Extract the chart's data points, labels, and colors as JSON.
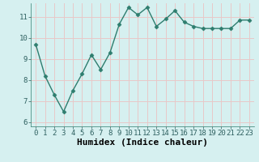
{
  "x": [
    0,
    1,
    2,
    3,
    4,
    5,
    6,
    7,
    8,
    9,
    10,
    11,
    12,
    13,
    14,
    15,
    16,
    17,
    18,
    19,
    20,
    21,
    22,
    23
  ],
  "y": [
    9.7,
    8.2,
    7.3,
    6.5,
    7.5,
    8.3,
    9.2,
    8.5,
    9.3,
    10.65,
    11.45,
    11.1,
    11.45,
    10.55,
    10.9,
    11.3,
    10.75,
    10.55,
    10.45,
    10.45,
    10.45,
    10.45,
    10.85,
    10.85
  ],
  "line_color": "#2e7d6e",
  "marker": "D",
  "marker_size": 2.5,
  "bg_color": "#d6f0f0",
  "grid_color": "#e8c8c8",
  "xlabel": "Humidex (Indice chaleur)",
  "ylabel": "",
  "xlim": [
    -0.5,
    23.5
  ],
  "ylim": [
    5.8,
    11.65
  ],
  "yticks": [
    6,
    7,
    8,
    9,
    10,
    11
  ],
  "xticks": [
    0,
    1,
    2,
    3,
    4,
    5,
    6,
    7,
    8,
    9,
    10,
    11,
    12,
    13,
    14,
    15,
    16,
    17,
    18,
    19,
    20,
    21,
    22,
    23
  ],
  "tick_fontsize": 6.5,
  "xlabel_fontsize": 8,
  "linewidth": 1.0
}
